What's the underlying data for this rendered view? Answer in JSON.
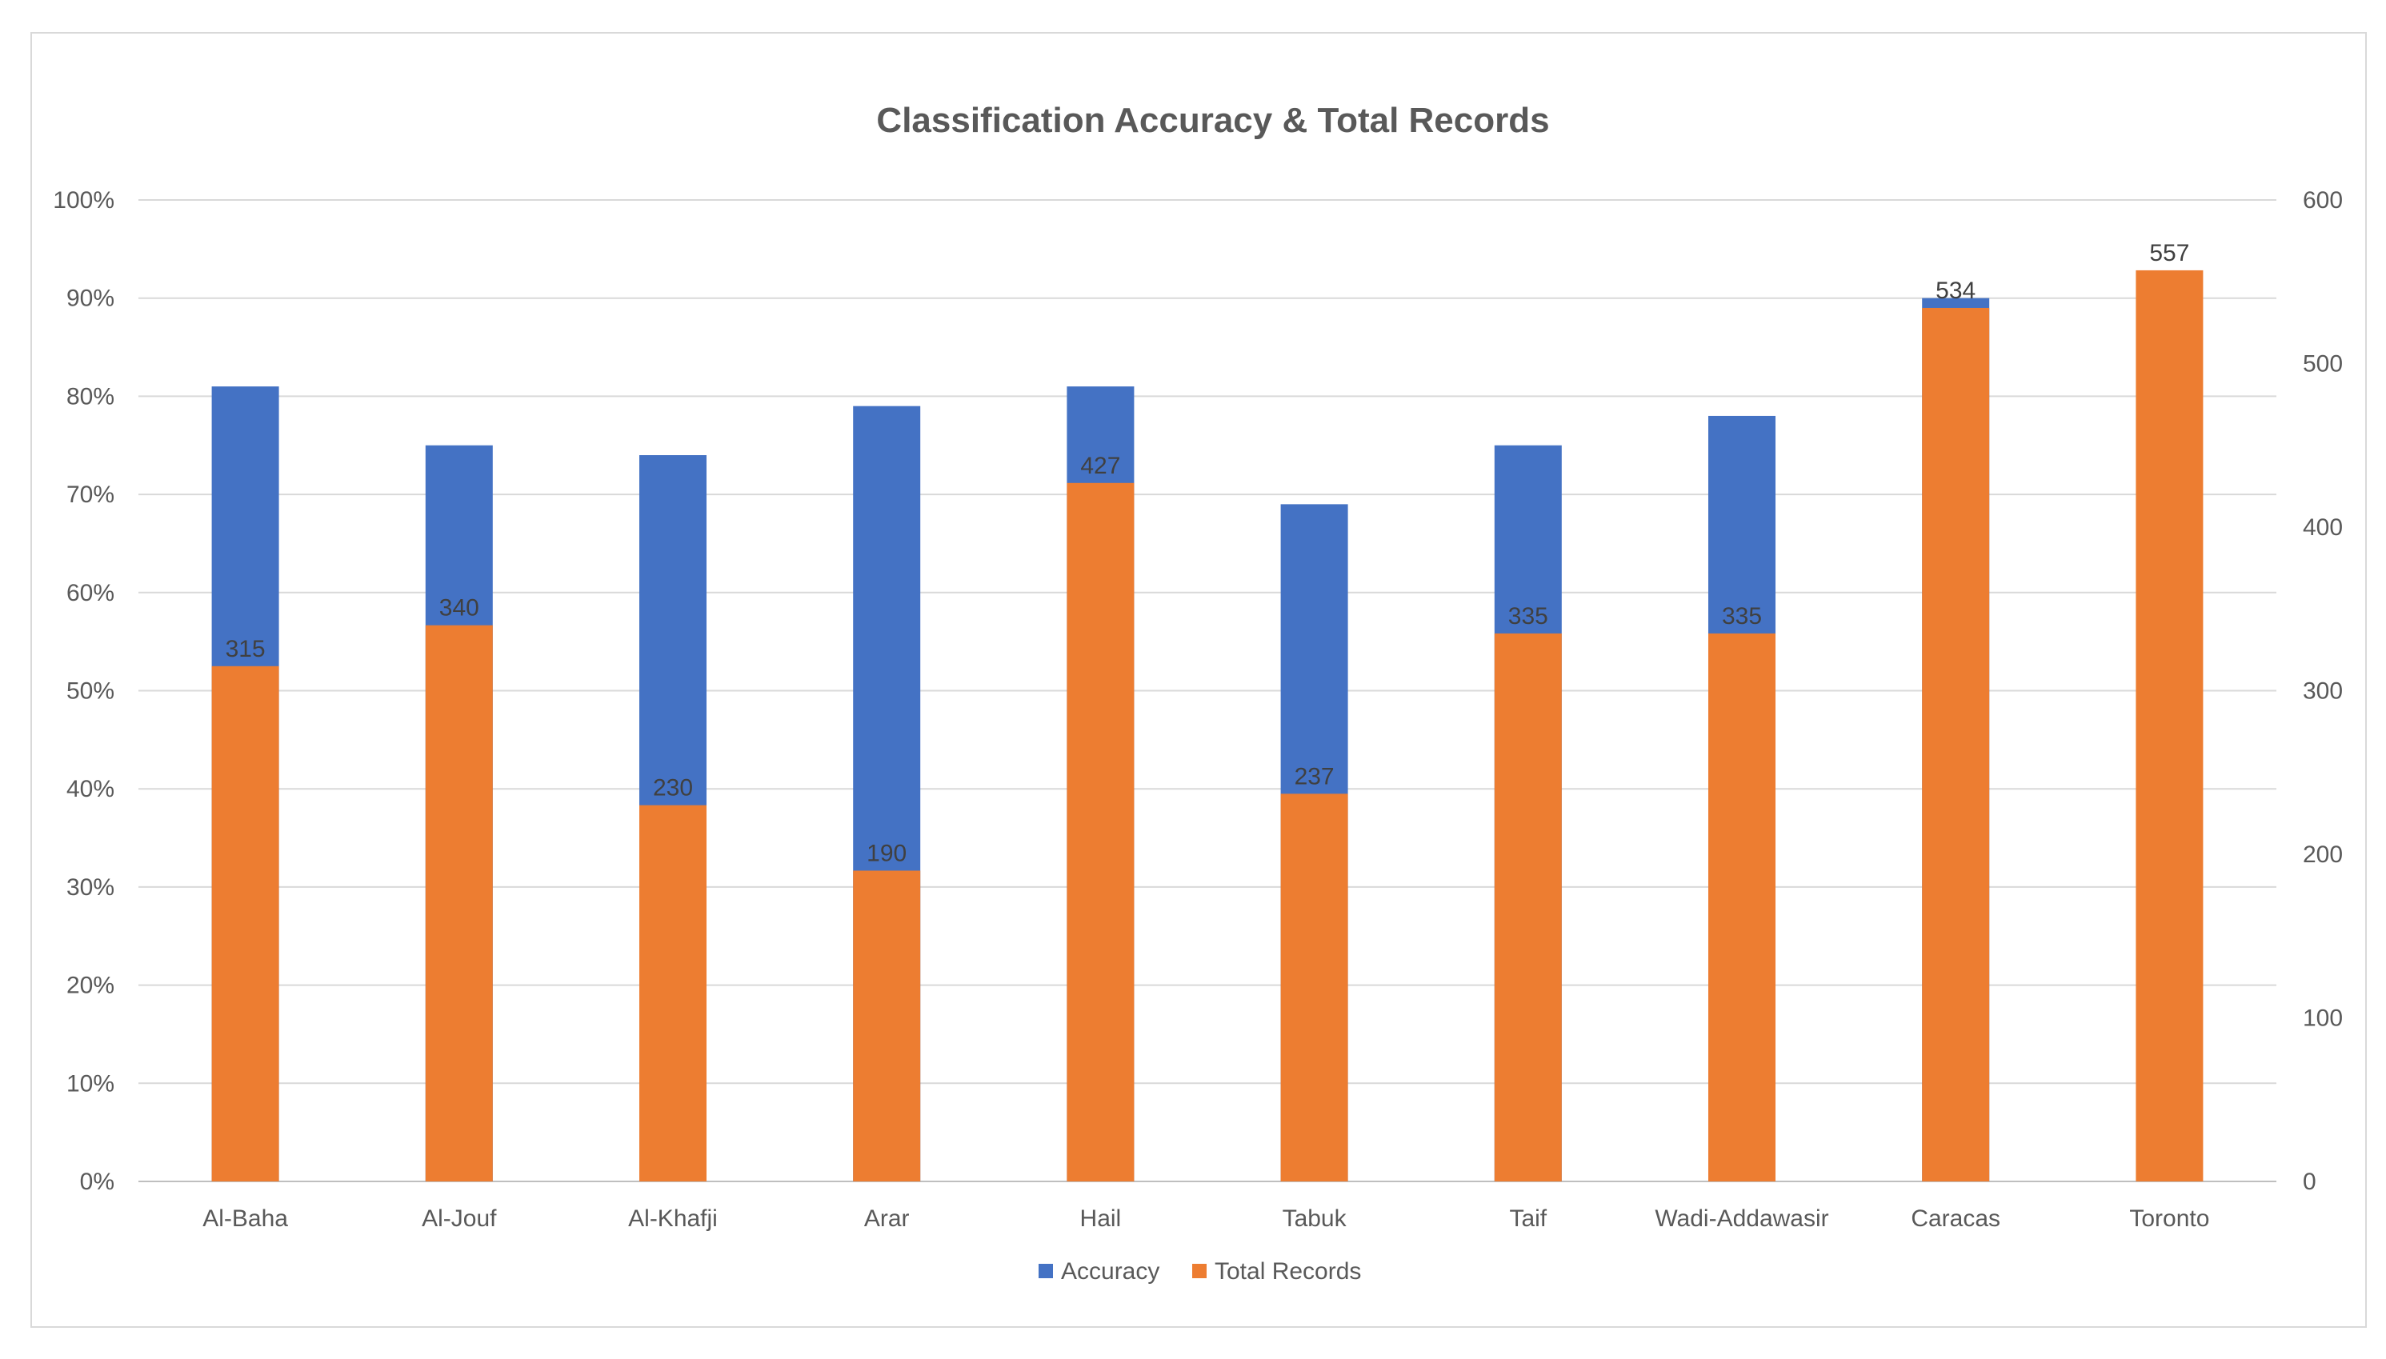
{
  "chart_data": {
    "type": "bar",
    "title": "Classification Accuracy & Total Records",
    "categories": [
      "Al-Baha",
      "Al-Jouf",
      "Al-Khafji",
      "Arar",
      "Hail",
      "Tabuk",
      "Taif",
      "Wadi-Addawasir",
      "Caracas",
      "Toronto"
    ],
    "series": [
      {
        "name": "Accuracy",
        "axis": "left",
        "values": [
          81,
          75,
          74,
          79,
          81,
          69,
          75,
          78,
          90,
          null
        ],
        "color": "#4472C4"
      },
      {
        "name": "Total Records",
        "axis": "right",
        "values": [
          315,
          340,
          230,
          190,
          427,
          237,
          335,
          335,
          534,
          557
        ],
        "color": "#ED7D31",
        "data_labels": [
          "315",
          "340",
          "230",
          "190",
          "427",
          "237",
          "335",
          "335",
          "534",
          "557"
        ]
      }
    ],
    "y_left": {
      "min": 0,
      "max": 100,
      "step": 10,
      "tick_labels": [
        "0%",
        "10%",
        "20%",
        "30%",
        "40%",
        "50%",
        "60%",
        "70%",
        "80%",
        "90%",
        "100%"
      ]
    },
    "y_right": {
      "min": 0,
      "max": 600,
      "step": 100,
      "tick_labels": [
        "0",
        "100",
        "200",
        "300",
        "400",
        "500",
        "600"
      ]
    },
    "grid": true,
    "legend_position": "bottom"
  }
}
